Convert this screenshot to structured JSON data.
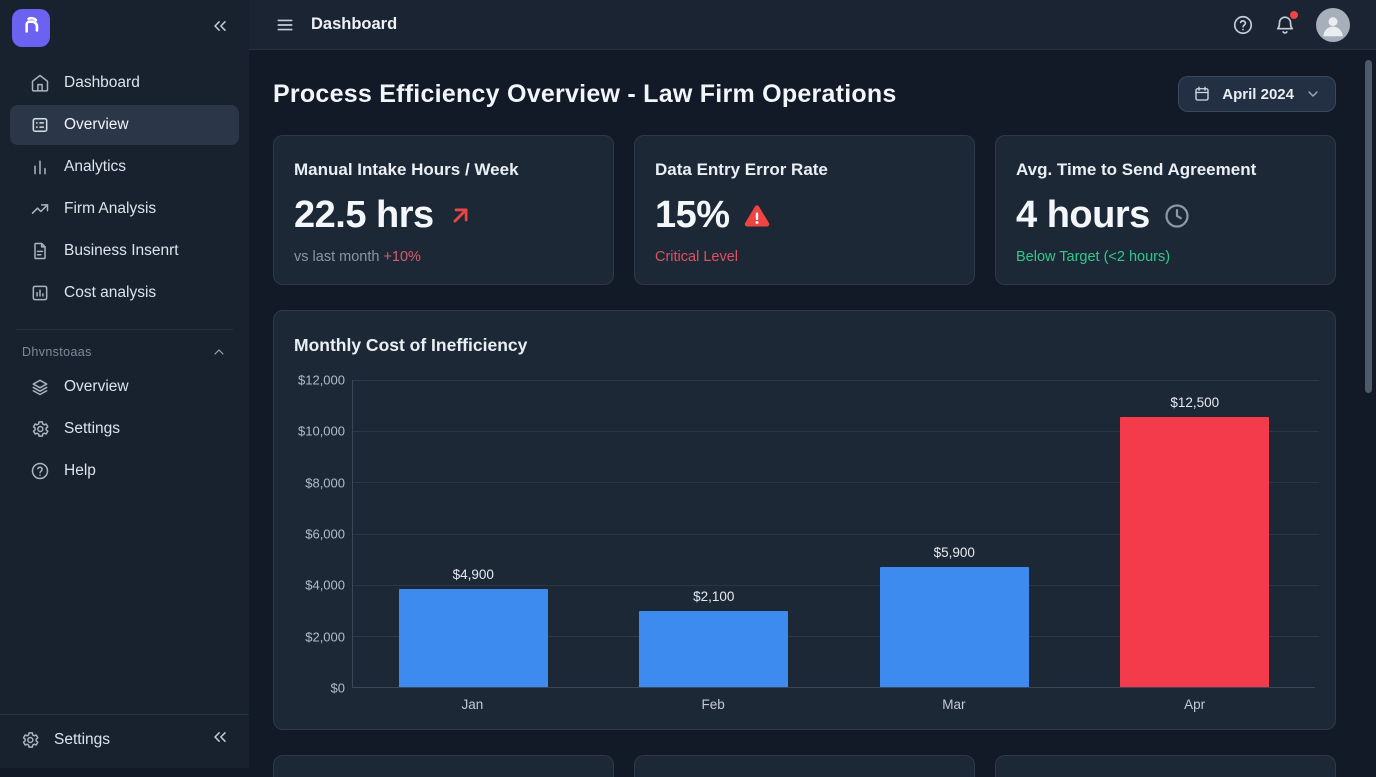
{
  "brand": {
    "logo_icon": "logo",
    "logo_color": "#6b62f2"
  },
  "topbar": {
    "title": "Dashboard",
    "menu_icon": "menu",
    "help_icon": "help-circle",
    "notifications_icon": "bell",
    "notification_dot_color": "#ef4444",
    "avatar_icon": "user"
  },
  "sidebar": {
    "collapse_icon": "chevrons-left",
    "main_items": [
      {
        "label": "Dashboard",
        "icon": "home",
        "active": false
      },
      {
        "label": "Overview",
        "icon": "layout-list",
        "active": true
      },
      {
        "label": "Analytics",
        "icon": "bar-chart",
        "active": false
      },
      {
        "label": "Firm Analysis",
        "icon": "trending-up",
        "active": false
      },
      {
        "label": "Business Insenrt",
        "icon": "file-text",
        "active": false
      },
      {
        "label": "Cost analysis",
        "icon": "chart-square",
        "active": false
      }
    ],
    "section_label": "Dhvnstoaas",
    "section_collapse_icon": "chevron-up",
    "section_items": [
      {
        "label": "Overview",
        "icon": "layers"
      },
      {
        "label": "Settings",
        "icon": "gear"
      },
      {
        "label": "Help",
        "icon": "help-circle"
      }
    ],
    "footer_label": "Settings",
    "footer_icon": "gear"
  },
  "page": {
    "title": "Process Efficiency Overview - Law Firm Operations",
    "date_label": "April 2024",
    "date_icon": "calendar",
    "date_chevron_icon": "chevron-down"
  },
  "kpis": [
    {
      "title": "Manual Intake Hours / Week",
      "value": "22.5 hrs",
      "icon": "arrow-up-right",
      "icon_color": "#ef4444",
      "sub_plain": "vs last month ",
      "sub_accent": "+10%",
      "sub_accent_color": "#d95c6c"
    },
    {
      "title": "Data Entry Error Rate",
      "value": "15%",
      "icon": "warning-triangle",
      "icon_color": "#ef4444",
      "sub_plain": "",
      "sub_accent": "Critical Level",
      "sub_accent_color": "#e0505e"
    },
    {
      "title": "Avg. Time to Send Agreement",
      "value": "4 hours",
      "icon": "clock",
      "icon_color": "#8d98a7",
      "sub_plain": "",
      "sub_accent": "Below Target (<2 hours)",
      "sub_accent_color": "#2fc98c"
    }
  ],
  "chart_data": {
    "type": "bar",
    "title": "Monthly Cost of Inefficiency",
    "categories": [
      "Jan",
      "Feb",
      "Mar",
      "Apr"
    ],
    "values": [
      4900,
      2100,
      5900,
      12500
    ],
    "value_labels": [
      "$4,900",
      "$2,100",
      "$5,900",
      "$12,500"
    ],
    "bar_colors": [
      "#3e8bf0",
      "#3e8bf0",
      "#3e8bf0",
      "#f43b4c"
    ],
    "y_ticks": [
      "$12,000",
      "$10,000",
      "$8,000",
      "$6,000",
      "$4,000",
      "$2,000",
      "$0"
    ],
    "ylim": [
      0,
      12000
    ],
    "xlabel": "",
    "ylabel": "",
    "grid": true,
    "legend": false,
    "render_heights_pct": [
      31.8,
      24.7,
      39,
      88
    ]
  }
}
